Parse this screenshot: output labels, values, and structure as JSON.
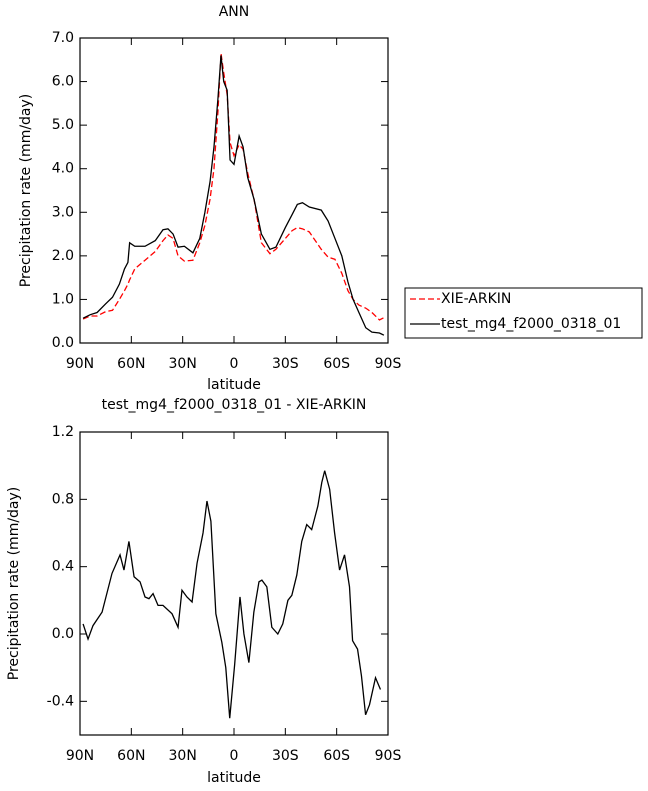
{
  "chart_data": [
    {
      "type": "line",
      "title": "ANN",
      "xlabel": "latitude",
      "ylabel": "Precipitation rate (mm/day)",
      "x": [
        88.2,
        84,
        80,
        75,
        71,
        67,
        64,
        62,
        61,
        58,
        52,
        46,
        41.5,
        38.6,
        35.6,
        32.7,
        29,
        24,
        20,
        17,
        14,
        11.7,
        9.4,
        7.6,
        6,
        4,
        2.3,
        0,
        -3,
        -5.3,
        -8,
        -11.7,
        -16,
        -21,
        -24.5,
        -30,
        -34,
        -37,
        -40,
        -44,
        -51,
        -55,
        -59,
        -63,
        -66.6,
        -69.6,
        -73,
        -77,
        -80.6,
        -85,
        -87.6
      ],
      "series": [
        {
          "name": "XIE-ARKIN",
          "color": "#ff0000",
          "dash": true,
          "values": [
            0.55,
            0.62,
            0.62,
            0.72,
            0.75,
            1.0,
            1.2,
            1.35,
            1.45,
            1.7,
            1.9,
            2.1,
            2.35,
            2.48,
            2.4,
            2.0,
            1.88,
            1.9,
            2.3,
            2.7,
            3.3,
            4.0,
            5.3,
            6.65,
            6.2,
            5.7,
            4.6,
            4.3,
            4.55,
            4.45,
            3.9,
            3.3,
            2.3,
            2.05,
            2.15,
            2.4,
            2.58,
            2.65,
            2.62,
            2.55,
            2.15,
            1.97,
            1.92,
            1.6,
            1.2,
            1.0,
            0.87,
            0.8,
            0.7,
            0.53,
            0.58
          ]
        },
        {
          "name": "test_mg4_f2000_0318_01",
          "color": "#000000",
          "dash": false,
          "values": [
            0.57,
            0.65,
            0.7,
            0.9,
            1.05,
            1.35,
            1.7,
            1.85,
            2.3,
            2.22,
            2.22,
            2.35,
            2.6,
            2.62,
            2.5,
            2.2,
            2.22,
            2.07,
            2.4,
            3.0,
            3.7,
            4.5,
            5.6,
            6.6,
            6.0,
            5.8,
            4.2,
            4.1,
            4.75,
            4.5,
            3.8,
            3.3,
            2.5,
            2.15,
            2.2,
            2.65,
            2.95,
            3.18,
            3.22,
            3.12,
            3.05,
            2.8,
            2.4,
            2.0,
            1.4,
            1.0,
            0.7,
            0.35,
            0.25,
            0.23,
            0.18
          ]
        }
      ],
      "xlim": [
        90,
        -90
      ],
      "xticks": [
        {
          "value": 90,
          "label": "90N"
        },
        {
          "value": 60,
          "label": "60N"
        },
        {
          "value": 30,
          "label": "30N"
        },
        0,
        {
          "value": -30,
          "label": "30S"
        },
        {
          "value": -60,
          "label": "60S"
        },
        {
          "value": -90,
          "label": "90S"
        }
      ],
      "ylim": [
        0,
        7
      ],
      "yticks": [
        {
          "value": 0,
          "label": "0.0"
        },
        {
          "value": 1,
          "label": "1.0"
        },
        {
          "value": 2,
          "label": "2.0"
        },
        {
          "value": 3,
          "label": "3.0"
        },
        {
          "value": 4,
          "label": "4.0"
        },
        {
          "value": 5,
          "label": "5.0"
        },
        {
          "value": 6,
          "label": "6.0"
        },
        {
          "value": 7,
          "label": "7.0"
        }
      ],
      "legend": "right"
    },
    {
      "type": "line",
      "title": "test_mg4_f2000_0318_01 - XIE-ARKIN",
      "xlabel": "latitude",
      "ylabel": "Precipitation rate (mm/day)",
      "x": [
        88.2,
        85.3,
        82.4,
        77.1,
        71.3,
        66.6,
        64.3,
        61.4,
        58.4,
        54.9,
        52,
        49.7,
        47.3,
        44.4,
        41.5,
        36.2,
        32.7,
        30.4,
        27.5,
        24.5,
        21.6,
        18.1,
        15.8,
        13.5,
        10.6,
        7.1,
        4.8,
        2.5,
        -0.4,
        -3.5,
        -5.8,
        -8.7,
        -11.6,
        -14.6,
        -16.3,
        -19.2,
        -22.1,
        -25.6,
        -28.5,
        -31.5,
        -33.8,
        -36.7,
        -39.6,
        -42.5,
        -45.4,
        -49,
        -51.3,
        -53,
        -55.9,
        -58.8,
        -61.7,
        -64.6,
        -67.5,
        -69.3,
        -72.2,
        -74.5,
        -76.9,
        -79.2,
        -82.7,
        -85.6
      ],
      "series": [
        {
          "color": "#000000",
          "dash": false,
          "values": [
            0.06,
            -0.03,
            0.05,
            0.13,
            0.36,
            0.47,
            0.38,
            0.55,
            0.34,
            0.31,
            0.22,
            0.21,
            0.24,
            0.17,
            0.17,
            0.12,
            0.04,
            0.26,
            0.22,
            0.19,
            0.42,
            0.6,
            0.79,
            0.67,
            0.12,
            -0.05,
            -0.2,
            -0.5,
            -0.18,
            0.22,
            0,
            -0.17,
            0.13,
            0.31,
            0.32,
            0.28,
            0.04,
            0,
            0.06,
            0.2,
            0.23,
            0.35,
            0.55,
            0.65,
            0.62,
            0.76,
            0.9,
            0.97,
            0.86,
            0.6,
            0.38,
            0.47,
            0.28,
            -0.04,
            -0.09,
            -0.25,
            -0.48,
            -0.42,
            -0.26,
            -0.33
          ]
        }
      ],
      "xlim": [
        90,
        -90
      ],
      "xticks": [
        {
          "value": 90,
          "label": "90N"
        },
        {
          "value": 60,
          "label": "60N"
        },
        {
          "value": 30,
          "label": "30N"
        },
        0,
        {
          "value": -30,
          "label": "30S"
        },
        {
          "value": -60,
          "label": "60S"
        },
        {
          "value": -90,
          "label": "90S"
        }
      ],
      "ylim": [
        -0.6,
        1.2
      ],
      "yticks": [
        -0.4,
        {
          "value": 0,
          "label": "0.0"
        },
        0.4,
        0.8,
        1.2
      ]
    }
  ]
}
